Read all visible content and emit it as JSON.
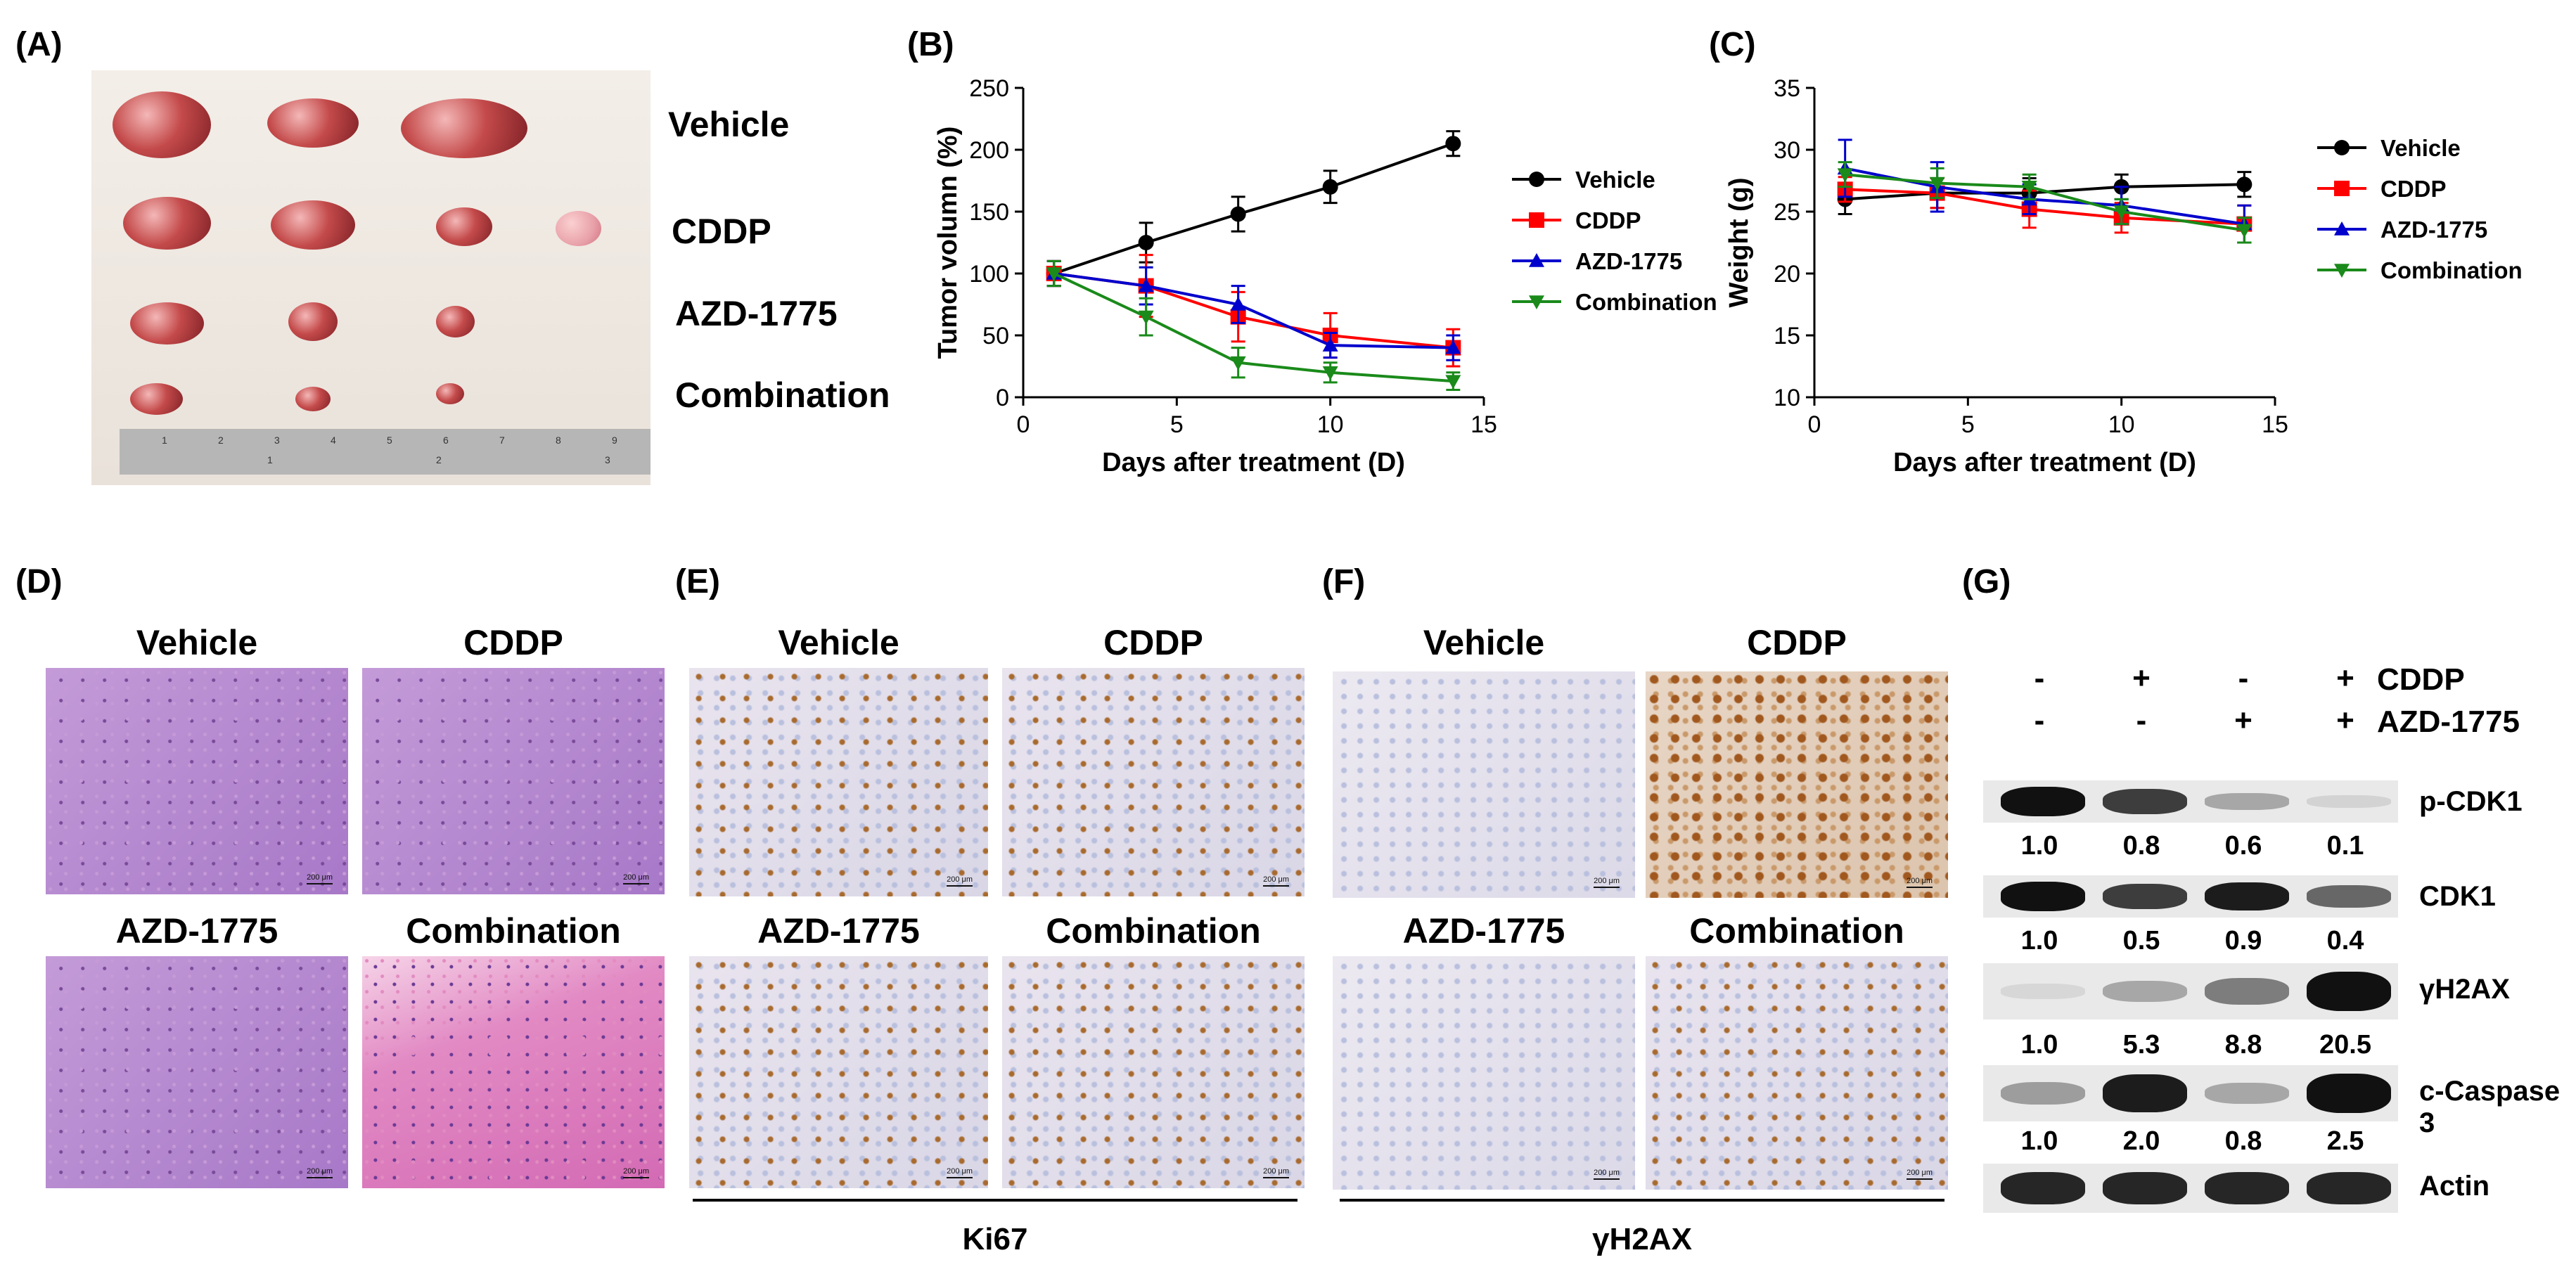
{
  "panel_labels": {
    "A": "(A)",
    "B": "(B)",
    "C": "(C)",
    "D": "(D)",
    "E": "(E)",
    "F": "(F)",
    "G": "(G)"
  },
  "panel_a": {
    "rows": [
      "Vehicle",
      "CDDP",
      "AZD-1775",
      "Combination"
    ],
    "ruler_marks": [
      "1",
      "2",
      "3",
      "4",
      "5",
      "6",
      "7",
      "8",
      "9"
    ],
    "ruler_inch_marks": [
      "1",
      "2",
      "3"
    ]
  },
  "panel_d": {
    "titles": [
      "Vehicle",
      "CDDP",
      "AZD-1775",
      "Combination"
    ],
    "scale": "200 μm"
  },
  "panel_e": {
    "titles": [
      "Vehicle",
      "CDDP",
      "AZD-1775",
      "Combination"
    ],
    "scale": "200 μm",
    "caption": "Ki67"
  },
  "panel_f": {
    "titles": [
      "Vehicle",
      "CDDP",
      "AZD-1775",
      "Combination"
    ],
    "scale": "200 μm",
    "caption": "γH2AX"
  },
  "panel_g": {
    "treatments": [
      {
        "name": "CDDP",
        "signs": [
          "-",
          "+",
          "-",
          "+"
        ]
      },
      {
        "name": "AZD-1775",
        "signs": [
          "-",
          "-",
          "+",
          "+"
        ]
      }
    ],
    "rows": [
      {
        "name": "p-CDK1",
        "values": [
          "1.0",
          "0.8",
          "0.6",
          "0.1"
        ],
        "intensity": [
          1.0,
          0.8,
          0.3,
          0.1
        ]
      },
      {
        "name": "CDK1",
        "values": [
          "1.0",
          "0.5",
          "0.9",
          "0.4"
        ],
        "intensity": [
          1.0,
          0.8,
          0.95,
          0.6
        ]
      },
      {
        "name": "γH2AX",
        "values": [
          "1.0",
          "5.3",
          "8.8",
          "20.5"
        ],
        "intensity": [
          0.05,
          0.3,
          0.5,
          1.0
        ]
      },
      {
        "name": "c-Caspase 3",
        "values": [
          "1.0",
          "2.0",
          "0.8",
          "2.5"
        ],
        "intensity": [
          0.35,
          0.95,
          0.3,
          1.0
        ]
      },
      {
        "name": "Actin",
        "values": [],
        "intensity": [
          0.9,
          0.9,
          0.9,
          0.9
        ]
      }
    ]
  },
  "colors": {
    "vehicle": "#000000",
    "cddp": "#ff0000",
    "azd": "#0000cc",
    "combination": "#1a8a1a"
  },
  "chart_data": [
    {
      "type": "line",
      "title": "",
      "xlabel": "Days after treatment (D)",
      "ylabel": "Tumor volumn  (%)",
      "xlim": [
        0,
        15
      ],
      "ylim": [
        0,
        250
      ],
      "xticks": [
        0,
        5,
        10,
        15
      ],
      "yticks": [
        0,
        50,
        100,
        150,
        200,
        250
      ],
      "x": [
        1,
        4,
        7,
        10,
        14
      ],
      "series": [
        {
          "name": "Vehicle",
          "marker": "circle",
          "values": [
            100,
            125,
            148,
            170,
            205
          ],
          "errors": [
            10,
            16,
            14,
            13,
            10
          ]
        },
        {
          "name": "CDDP",
          "marker": "square",
          "values": [
            100,
            90,
            65,
            50,
            40
          ],
          "errors": [
            10,
            25,
            20,
            18,
            15
          ]
        },
        {
          "name": "AZD-1775",
          "marker": "triangle-up",
          "values": [
            100,
            90,
            75,
            42,
            40
          ],
          "errors": [
            10,
            15,
            15,
            10,
            10
          ]
        },
        {
          "name": "Combination",
          "marker": "triangle-down",
          "values": [
            100,
            65,
            28,
            20,
            13
          ],
          "errors": [
            10,
            15,
            12,
            8,
            7
          ]
        }
      ],
      "legend": "right"
    },
    {
      "type": "line",
      "title": "",
      "xlabel": "Days after treatment (D)",
      "ylabel": "Weight (g)",
      "xlim": [
        0,
        15
      ],
      "ylim": [
        10,
        35
      ],
      "xticks": [
        0,
        5,
        10,
        15
      ],
      "yticks": [
        10,
        15,
        20,
        25,
        30,
        35
      ],
      "x": [
        1,
        4,
        7,
        10,
        14
      ],
      "series": [
        {
          "name": "Vehicle",
          "marker": "circle",
          "values": [
            26,
            26.5,
            26.5,
            27,
            27.2
          ],
          "errors": [
            1.2,
            1.2,
            1.2,
            1.0,
            1.0
          ]
        },
        {
          "name": "CDDP",
          "marker": "square",
          "values": [
            26.8,
            26.5,
            25.2,
            24.5,
            24
          ],
          "errors": [
            1.0,
            1.2,
            1.5,
            1.2,
            1.5
          ]
        },
        {
          "name": "AZD-1775",
          "marker": "triangle-up",
          "values": [
            28.5,
            27,
            26,
            25.5,
            24
          ],
          "errors": [
            2.3,
            2.0,
            1.2,
            1.5,
            1.5
          ]
        },
        {
          "name": "Combination",
          "marker": "triangle-down",
          "values": [
            28,
            27.3,
            27,
            25,
            23.5
          ],
          "errors": [
            1.0,
            1.2,
            1.0,
            1.0,
            1.0
          ]
        }
      ],
      "legend": "right"
    }
  ]
}
